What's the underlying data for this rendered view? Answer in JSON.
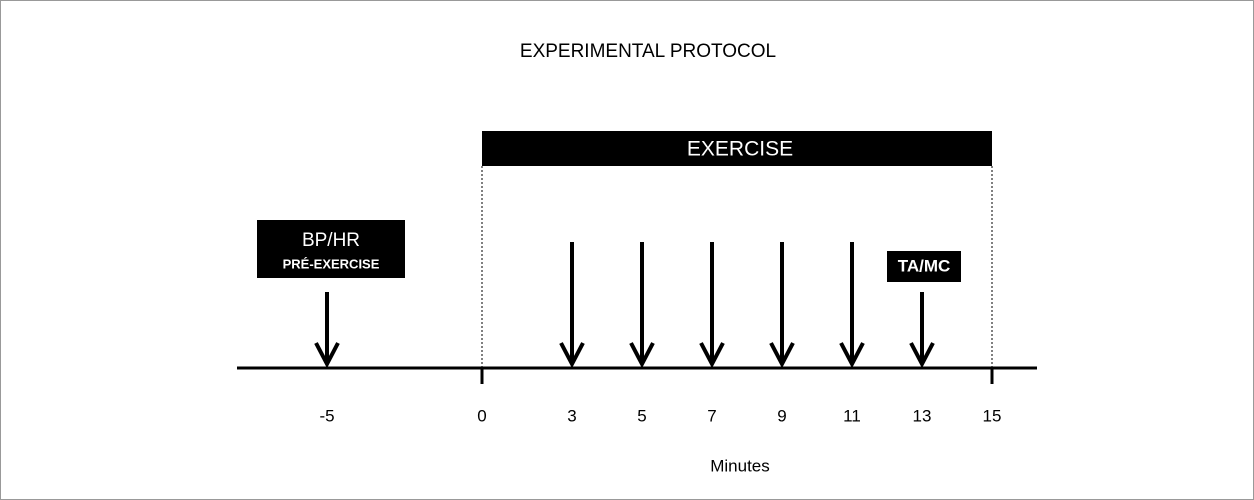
{
  "title": "EXPERIMENTAL PROTOCOL",
  "exercise_label": "EXERCISE",
  "pre_exercise_box": {
    "line1": "BP/HR",
    "line2": "PRÉ-EXERCISE"
  },
  "final_box": "TA/MC",
  "timeline": {
    "ticks": [
      "-5",
      "0",
      "3",
      "5",
      "7",
      "9",
      "11",
      "13",
      "15"
    ],
    "axis_label": "Minutes"
  }
}
